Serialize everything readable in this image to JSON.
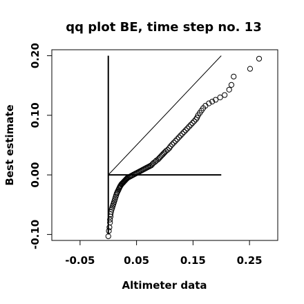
{
  "chart_data": {
    "type": "scatter",
    "title": "qq plot BE, time step no. 13",
    "xlabel": "Altimeter data",
    "ylabel": "Best estimate",
    "xlim": [
      -0.1,
      0.3
    ],
    "ylim": [
      -0.11,
      0.21
    ],
    "x_ticks": [
      -0.05,
      0.05,
      0.15,
      0.25
    ],
    "x_tick_labels": [
      "-0.05",
      "0.05",
      "0.15",
      "0.25"
    ],
    "y_ticks": [
      -0.1,
      0.0,
      0.1,
      0.2
    ],
    "y_tick_labels": [
      "-0.10",
      "0.00",
      "0.10",
      "0.20"
    ],
    "grid": false,
    "reference_lines": [
      {
        "kind": "identity",
        "from": [
          0.0,
          0.0
        ],
        "to": [
          0.2,
          0.2
        ]
      },
      {
        "kind": "vertical",
        "from": [
          0.0,
          -0.1
        ],
        "to": [
          0.0,
          0.2
        ]
      },
      {
        "kind": "horizontal",
        "from": [
          0.0,
          0.0
        ],
        "to": [
          0.2,
          0.0
        ]
      }
    ],
    "points": [
      [
        0.0,
        -0.103
      ],
      [
        0.001,
        -0.094
      ],
      [
        0.002,
        -0.088
      ],
      [
        0.003,
        -0.08
      ],
      [
        0.003,
        -0.075
      ],
      [
        0.004,
        -0.07
      ],
      [
        0.004,
        -0.066
      ],
      [
        0.005,
        -0.062
      ],
      [
        0.006,
        -0.058
      ],
      [
        0.007,
        -0.055
      ],
      [
        0.008,
        -0.052
      ],
      [
        0.009,
        -0.049
      ],
      [
        0.01,
        -0.046
      ],
      [
        0.011,
        -0.043
      ],
      [
        0.012,
        -0.04
      ],
      [
        0.013,
        -0.037
      ],
      [
        0.014,
        -0.034
      ],
      [
        0.015,
        -0.031
      ],
      [
        0.016,
        -0.029
      ],
      [
        0.017,
        -0.027
      ],
      [
        0.018,
        -0.025
      ],
      [
        0.019,
        -0.023
      ],
      [
        0.02,
        -0.021
      ],
      [
        0.021,
        -0.019
      ],
      [
        0.022,
        -0.018
      ],
      [
        0.023,
        -0.016
      ],
      [
        0.024,
        -0.015
      ],
      [
        0.025,
        -0.014
      ],
      [
        0.026,
        -0.013
      ],
      [
        0.027,
        -0.012
      ],
      [
        0.028,
        -0.011
      ],
      [
        0.029,
        -0.01
      ],
      [
        0.03,
        -0.009
      ],
      [
        0.031,
        -0.008
      ],
      [
        0.032,
        -0.007
      ],
      [
        0.033,
        -0.006
      ],
      [
        0.034,
        -0.005
      ],
      [
        0.036,
        -0.004
      ],
      [
        0.038,
        -0.003
      ],
      [
        0.04,
        -0.002
      ],
      [
        0.042,
        -0.001
      ],
      [
        0.044,
        0.0
      ],
      [
        0.046,
        0.001
      ],
      [
        0.048,
        0.002
      ],
      [
        0.05,
        0.003
      ],
      [
        0.052,
        0.004
      ],
      [
        0.054,
        0.005
      ],
      [
        0.056,
        0.006
      ],
      [
        0.058,
        0.007
      ],
      [
        0.06,
        0.008
      ],
      [
        0.062,
        0.009
      ],
      [
        0.064,
        0.01
      ],
      [
        0.066,
        0.011
      ],
      [
        0.068,
        0.012
      ],
      [
        0.07,
        0.013
      ],
      [
        0.072,
        0.014
      ],
      [
        0.074,
        0.015
      ],
      [
        0.076,
        0.016
      ],
      [
        0.078,
        0.018
      ],
      [
        0.08,
        0.02
      ],
      [
        0.083,
        0.022
      ],
      [
        0.085,
        0.024
      ],
      [
        0.088,
        0.026
      ],
      [
        0.09,
        0.028
      ],
      [
        0.092,
        0.03
      ],
      [
        0.094,
        0.032
      ],
      [
        0.096,
        0.034
      ],
      [
        0.098,
        0.036
      ],
      [
        0.1,
        0.038
      ],
      [
        0.102,
        0.04
      ],
      [
        0.105,
        0.042
      ],
      [
        0.108,
        0.045
      ],
      [
        0.11,
        0.048
      ],
      [
        0.113,
        0.051
      ],
      [
        0.116,
        0.054
      ],
      [
        0.119,
        0.057
      ],
      [
        0.122,
        0.06
      ],
      [
        0.125,
        0.063
      ],
      [
        0.128,
        0.066
      ],
      [
        0.131,
        0.069
      ],
      [
        0.134,
        0.072
      ],
      [
        0.137,
        0.075
      ],
      [
        0.14,
        0.078
      ],
      [
        0.143,
        0.081
      ],
      [
        0.146,
        0.084
      ],
      [
        0.149,
        0.087
      ],
      [
        0.152,
        0.09
      ],
      [
        0.155,
        0.093
      ],
      [
        0.157,
        0.096
      ],
      [
        0.159,
        0.1
      ],
      [
        0.162,
        0.104
      ],
      [
        0.165,
        0.108
      ],
      [
        0.168,
        0.112
      ],
      [
        0.172,
        0.116
      ],
      [
        0.178,
        0.12
      ],
      [
        0.184,
        0.123
      ],
      [
        0.19,
        0.126
      ],
      [
        0.198,
        0.13
      ],
      [
        0.206,
        0.134
      ],
      [
        0.214,
        0.143
      ],
      [
        0.218,
        0.151
      ],
      [
        0.222,
        0.165
      ],
      [
        0.251,
        0.178
      ],
      [
        0.267,
        0.195
      ]
    ]
  }
}
